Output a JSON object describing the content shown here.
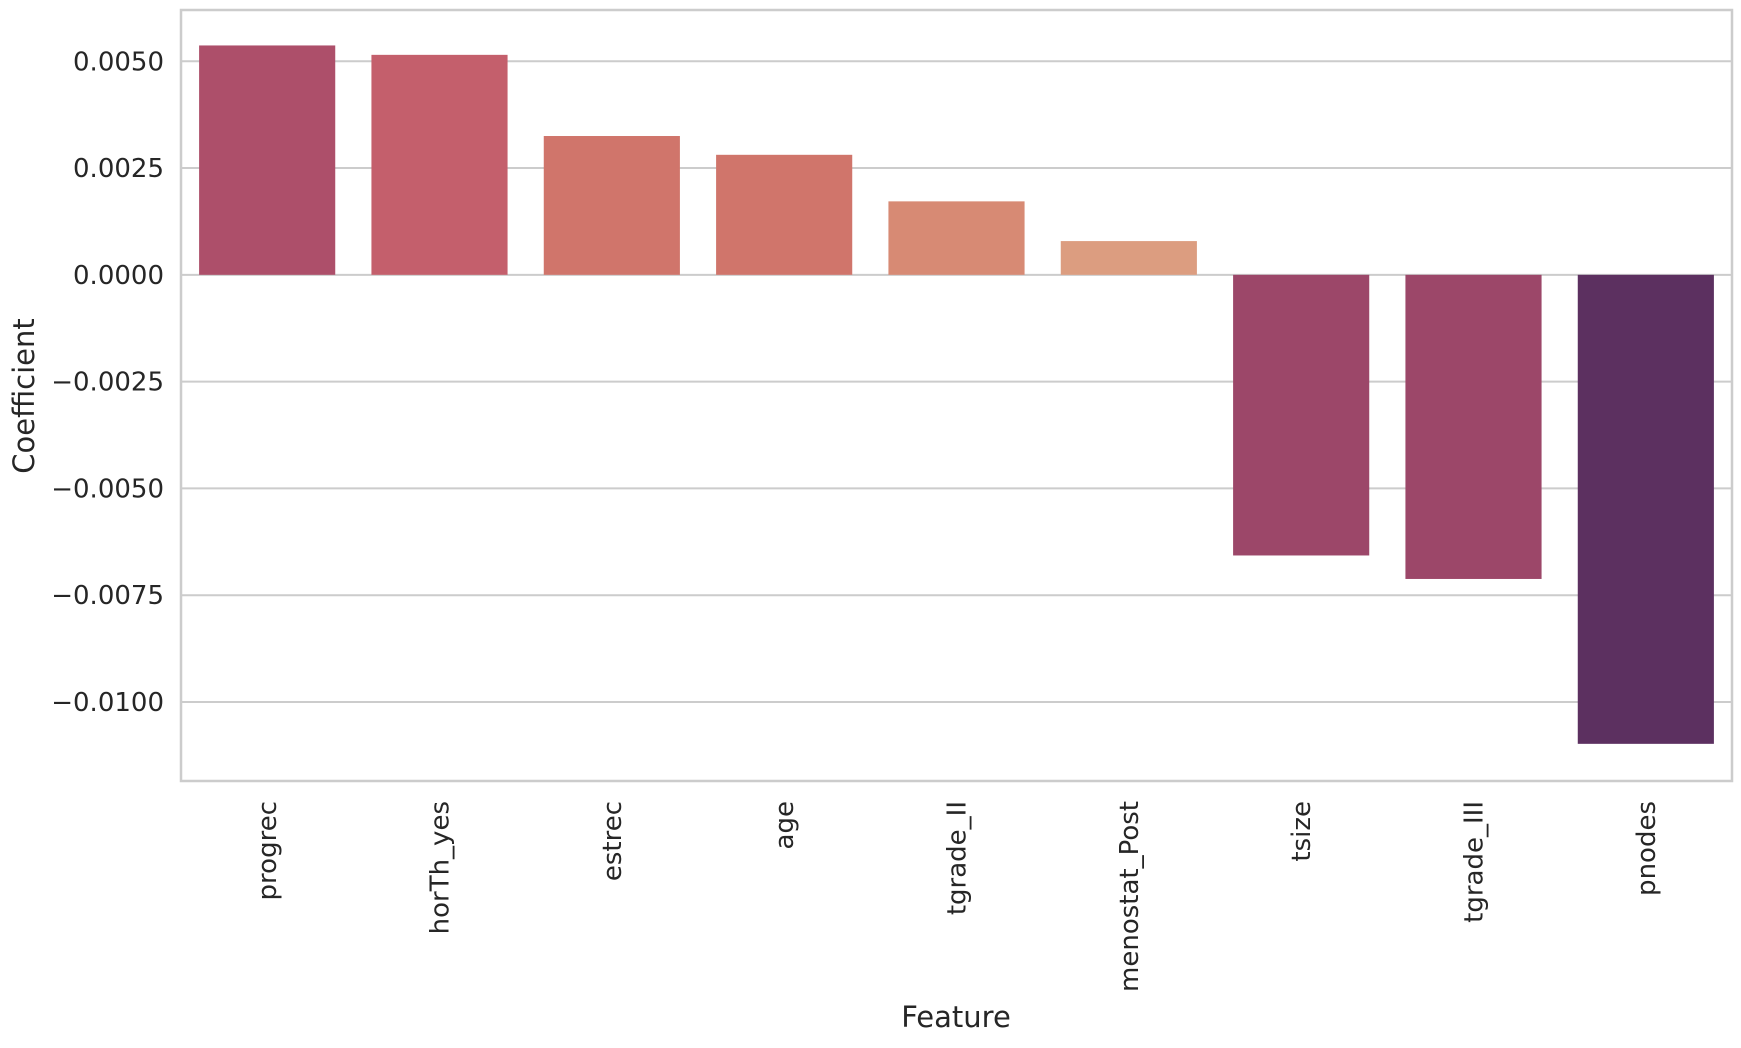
{
  "chart_data": {
    "type": "bar",
    "title": "",
    "xlabel": "Feature",
    "ylabel": "Coefficient",
    "categories": [
      "progrec",
      "horTh_yes",
      "estrec",
      "age",
      "tgrade_II",
      "menostat_Post",
      "tsize",
      "tgrade_III",
      "pnodes"
    ],
    "values": [
      0.00537,
      0.00515,
      0.00325,
      0.00281,
      0.00172,
      0.00079,
      -0.00657,
      -0.00712,
      -0.01098
    ],
    "colors": [
      "#ad4f6a",
      "#c45f6c",
      "#d0756b",
      "#d0756b",
      "#d78a74",
      "#dc9d80",
      "#9c4769",
      "#9c4769",
      "#5c3060"
    ],
    "ylim": [
      -0.01185,
      0.0062
    ],
    "yticks": [
      0.005,
      0.0025,
      0.0,
      -0.0025,
      -0.005,
      -0.0075,
      -0.01
    ],
    "ytick_labels": [
      "0.0050",
      "0.0025",
      "0.0000",
      "−0.0025",
      "−0.0050",
      "−0.0075",
      "−0.0100"
    ],
    "grid": true,
    "legend": "none"
  }
}
